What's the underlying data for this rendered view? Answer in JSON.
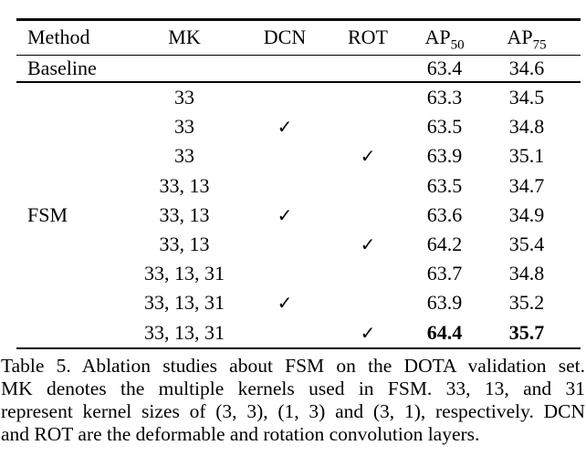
{
  "colors": {
    "text": "#000000",
    "background": "#ffffff",
    "rule": "#000000"
  },
  "table": {
    "headers": {
      "method": "Method",
      "mk": "MK",
      "dcn": "DCN",
      "rot": "ROT",
      "ap50": {
        "base": "AP",
        "sub": "50"
      },
      "ap75": {
        "base": "AP",
        "sub": "75"
      }
    },
    "baseline": {
      "method": "Baseline",
      "mk": "",
      "dcn": "",
      "rot": "",
      "ap50": "63.4",
      "ap75": "34.6"
    },
    "group_label": "FSM",
    "checkmark_glyph": "✓",
    "rows": [
      {
        "method": "",
        "mk": "33",
        "dcn": "",
        "rot": "",
        "ap50": "63.3",
        "ap75": "34.5",
        "bold": false
      },
      {
        "method": "",
        "mk": "33",
        "dcn": "✓",
        "rot": "",
        "ap50": "63.5",
        "ap75": "34.8",
        "bold": false
      },
      {
        "method": "",
        "mk": "33",
        "dcn": "",
        "rot": "✓",
        "ap50": "63.9",
        "ap75": "35.1",
        "bold": false
      },
      {
        "method": "",
        "mk": "33, 13",
        "dcn": "",
        "rot": "",
        "ap50": "63.5",
        "ap75": "34.7",
        "bold": false
      },
      {
        "method": "FSM",
        "mk": "33, 13",
        "dcn": "✓",
        "rot": "",
        "ap50": "63.6",
        "ap75": "34.9",
        "bold": false
      },
      {
        "method": "",
        "mk": "33, 13",
        "dcn": "",
        "rot": "✓",
        "ap50": "64.2",
        "ap75": "35.4",
        "bold": false
      },
      {
        "method": "",
        "mk": "33, 13, 31",
        "dcn": "",
        "rot": "",
        "ap50": "63.7",
        "ap75": "34.8",
        "bold": false
      },
      {
        "method": "",
        "mk": "33, 13, 31",
        "dcn": "✓",
        "rot": "",
        "ap50": "63.9",
        "ap75": "35.2",
        "bold": false
      },
      {
        "method": "",
        "mk": "33, 13, 31",
        "dcn": "",
        "rot": "✓",
        "ap50": "64.4",
        "ap75": "35.7",
        "bold": true
      }
    ]
  },
  "caption": {
    "lines": [
      "Table 5. Ablation studies about FSM on the DOTA validation set.",
      "MK denotes the multiple kernels used in FSM. 33, 13, and 31",
      "represent kernel sizes of (3, 3), (1, 3) and (3, 1), respectively. DCN",
      "and ROT are the deformable and rotation convolution layers."
    ]
  }
}
